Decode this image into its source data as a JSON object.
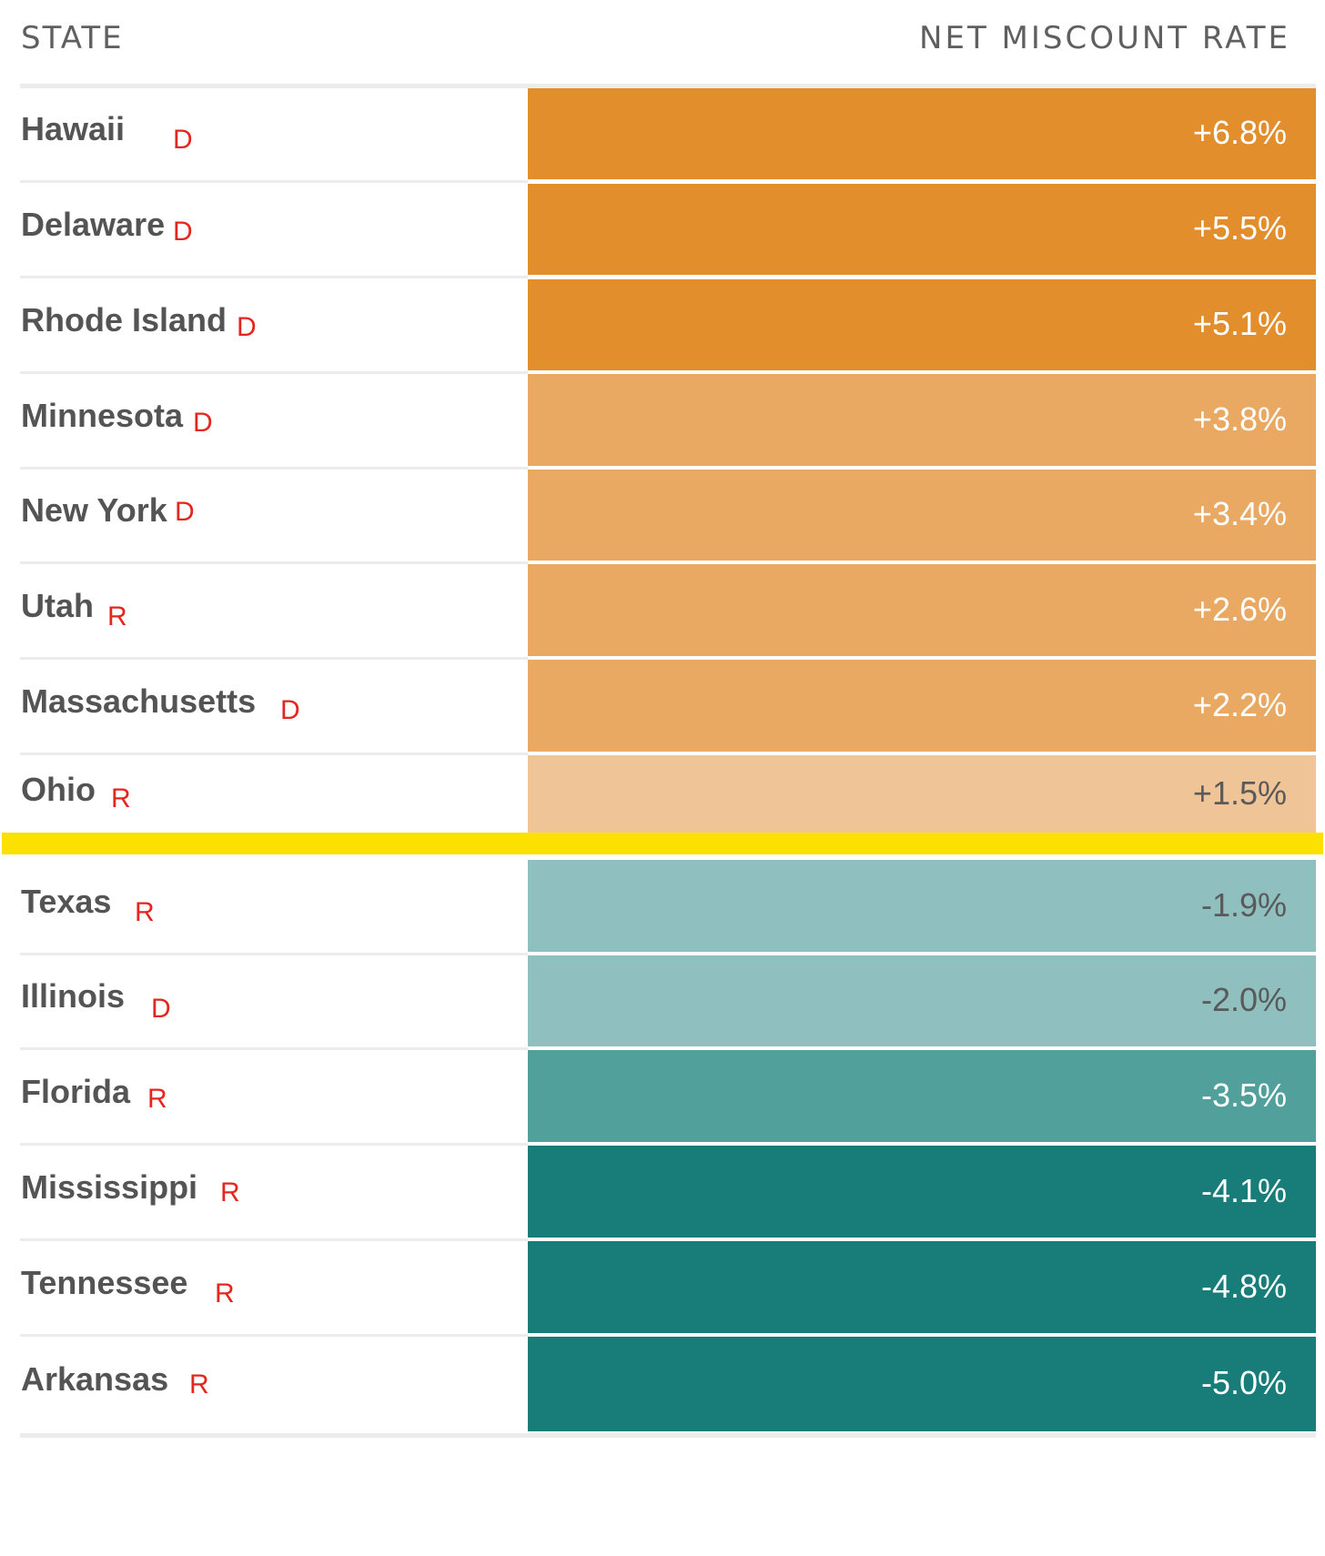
{
  "chart_data": {
    "type": "table",
    "columns": [
      "STATE",
      "NET MISCOUNT RATE"
    ],
    "rows": [
      {
        "state": "Hawaii",
        "party": "D",
        "value": 6.8,
        "label": "+6.8%",
        "color": "#e28e2d",
        "text_color": "#ffffff"
      },
      {
        "state": "Delaware",
        "party": "D",
        "value": 5.5,
        "label": "+5.5%",
        "color": "#e28e2d",
        "text_color": "#ffffff"
      },
      {
        "state": "Rhode Island",
        "party": "D",
        "value": 5.1,
        "label": "+5.1%",
        "color": "#e28e2d",
        "text_color": "#ffffff"
      },
      {
        "state": "Minnesota",
        "party": "D",
        "value": 3.8,
        "label": "+3.8%",
        "color": "#e9a962",
        "text_color": "#ffffff"
      },
      {
        "state": "New York",
        "party": "D",
        "value": 3.4,
        "label": "+3.4%",
        "color": "#e9a962",
        "text_color": "#ffffff"
      },
      {
        "state": "Utah",
        "party": "R",
        "value": 2.6,
        "label": "+2.6%",
        "color": "#e9a962",
        "text_color": "#ffffff"
      },
      {
        "state": "Massachusetts",
        "party": "D",
        "value": 2.2,
        "label": "+2.2%",
        "color": "#e9a962",
        "text_color": "#ffffff"
      },
      {
        "state": "Ohio",
        "party": "R",
        "value": 1.5,
        "label": "+1.5%",
        "color": "#efc497",
        "text_color": "#5a5a5a"
      },
      {
        "state": "Texas",
        "party": "R",
        "value": -1.9,
        "label": "-1.9%",
        "color": "#8fbfbe",
        "text_color": "#5a5a5a"
      },
      {
        "state": "Illinois",
        "party": "D",
        "value": -2.0,
        "label": "-2.0%",
        "color": "#8fbfbe",
        "text_color": "#5a5a5a"
      },
      {
        "state": "Florida",
        "party": "R",
        "value": -3.5,
        "label": "-3.5%",
        "color": "#51a09b",
        "text_color": "#ffffff"
      },
      {
        "state": "Mississippi",
        "party": "R",
        "value": -4.1,
        "label": "-4.1%",
        "color": "#187c78",
        "text_color": "#ffffff"
      },
      {
        "state": "Tennessee",
        "party": "R",
        "value": -4.8,
        "label": "-4.8%",
        "color": "#187c78",
        "text_color": "#ffffff"
      },
      {
        "state": "Arkansas",
        "party": "R",
        "value": -5.0,
        "label": "-5.0%",
        "color": "#187c78",
        "text_color": "#ffffff"
      }
    ],
    "highlight_line_color": "#fbe000",
    "party_label_color": "#e3261e"
  }
}
